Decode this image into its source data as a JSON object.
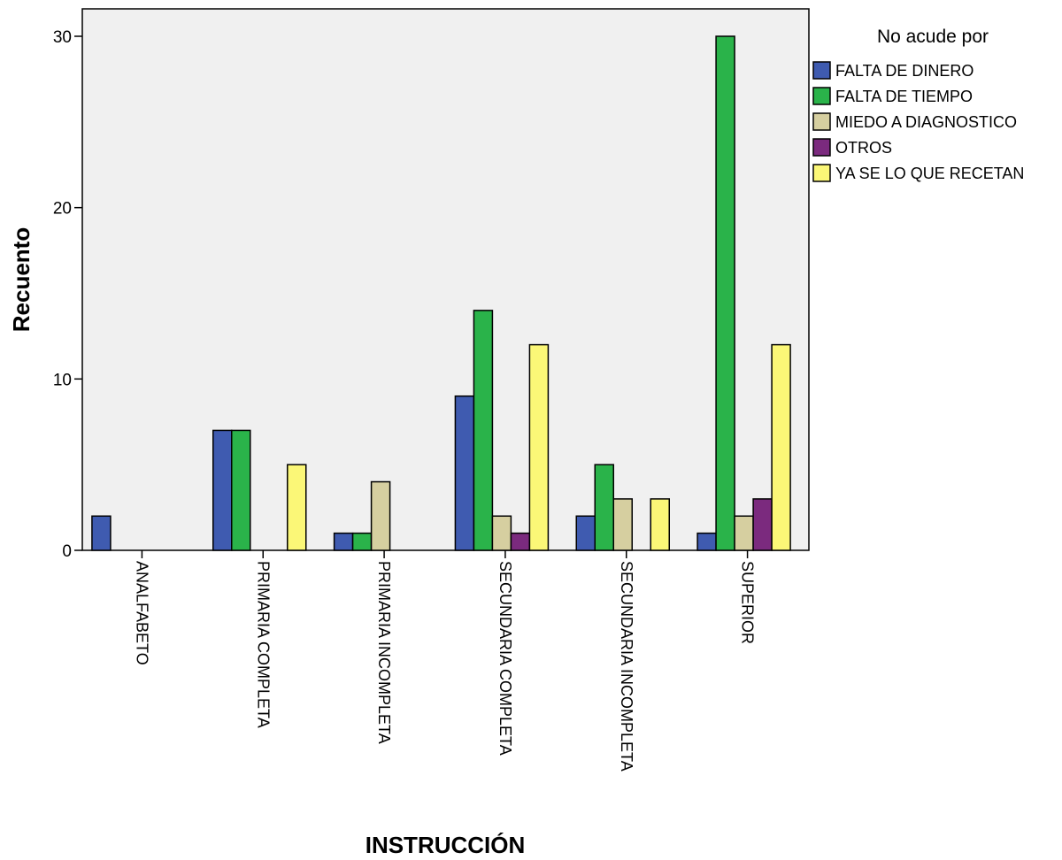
{
  "chart_data": {
    "type": "bar",
    "title": "",
    "xlabel": "INSTRUCCIÓN",
    "ylabel": "Recuento",
    "ylim": [
      0,
      31.5
    ],
    "yticks": [
      0,
      10,
      20,
      30
    ],
    "grid": false,
    "legend_title": "No acude por",
    "legend_position": "right",
    "categories": [
      "ANALFABETO",
      "PRIMARIA COMPLETA",
      "PRIMARIA INCOMPLETA",
      "SECUNDARIA COMPLETA",
      "SECUNDARIA INCOMPLETA",
      "SUPERIOR"
    ],
    "series": [
      {
        "name": "FALTA DE DINERO",
        "color": "#3f5bb0",
        "values": [
          2,
          7,
          1,
          9,
          2,
          1
        ]
      },
      {
        "name": "FALTA DE TIEMPO",
        "color": "#2ab34a",
        "values": [
          0,
          7,
          1,
          14,
          5,
          30
        ]
      },
      {
        "name": "MIEDO A DIAGNOSTICO",
        "color": "#d6cfa0",
        "values": [
          0,
          0,
          4,
          2,
          3,
          2
        ]
      },
      {
        "name": "OTROS",
        "color": "#7b2a7e",
        "values": [
          0,
          0,
          0,
          1,
          0,
          3
        ]
      },
      {
        "name": "YA SE LO QUE RECETAN",
        "color": "#fbf777",
        "values": [
          0,
          5,
          0,
          12,
          3,
          12
        ]
      }
    ]
  }
}
